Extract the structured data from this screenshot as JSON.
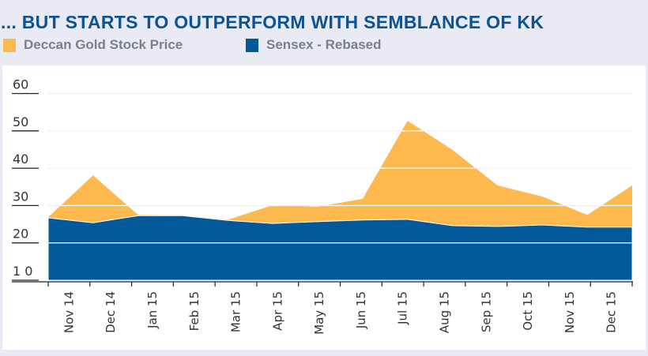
{
  "header": {
    "title": "... BUT STARTS TO OUTPERFORM WITH SEMBLANCE OF KK"
  },
  "legend": [
    {
      "label": "Deccan Gold Stock Price",
      "color": "#fdb94d"
    },
    {
      "label": "Sensex - Rebased",
      "color": "#02599a"
    }
  ],
  "chart_data": {
    "type": "area",
    "title": "... BUT STARTS TO OUTPERFORM WITH SEMBLANCE OF KK",
    "xlabel": "",
    "ylabel": "",
    "categories": [
      "Nov 14",
      "Dec 14",
      "Jan 15",
      "Feb 15",
      "Mar 15",
      "Apr 15",
      "May 15",
      "Jun 15",
      "Jul 15",
      "Aug 15",
      "Sep 15",
      "Oct 15",
      "Nov 15",
      "Dec 15"
    ],
    "series": [
      {
        "name": "Deccan Gold Stock Price",
        "color": "#fdb94d",
        "values": [
          26.9,
          38.1,
          27.5,
          27.4,
          26.2,
          30.1,
          29.7,
          31.8,
          52.7,
          44.9,
          35.4,
          32.4,
          27.5,
          35.4
        ]
      },
      {
        "name": "Sensex - Rebased",
        "color": "#02599a",
        "values": [
          26.7,
          25.4,
          27.3,
          27.3,
          26.0,
          25.2,
          25.7,
          26.1,
          26.3,
          24.6,
          24.4,
          24.8,
          24.2,
          24.2
        ]
      }
    ],
    "yticks": [
      10,
      20,
      30,
      40,
      50,
      60
    ],
    "ytick_labels": [
      "1 0",
      "20",
      "30",
      "40",
      "50",
      "60"
    ],
    "ylim": [
      10,
      60
    ],
    "grid": true,
    "legend_position": "top-left",
    "overlay": "Sensex area drawn in front of Deccan Gold area"
  }
}
